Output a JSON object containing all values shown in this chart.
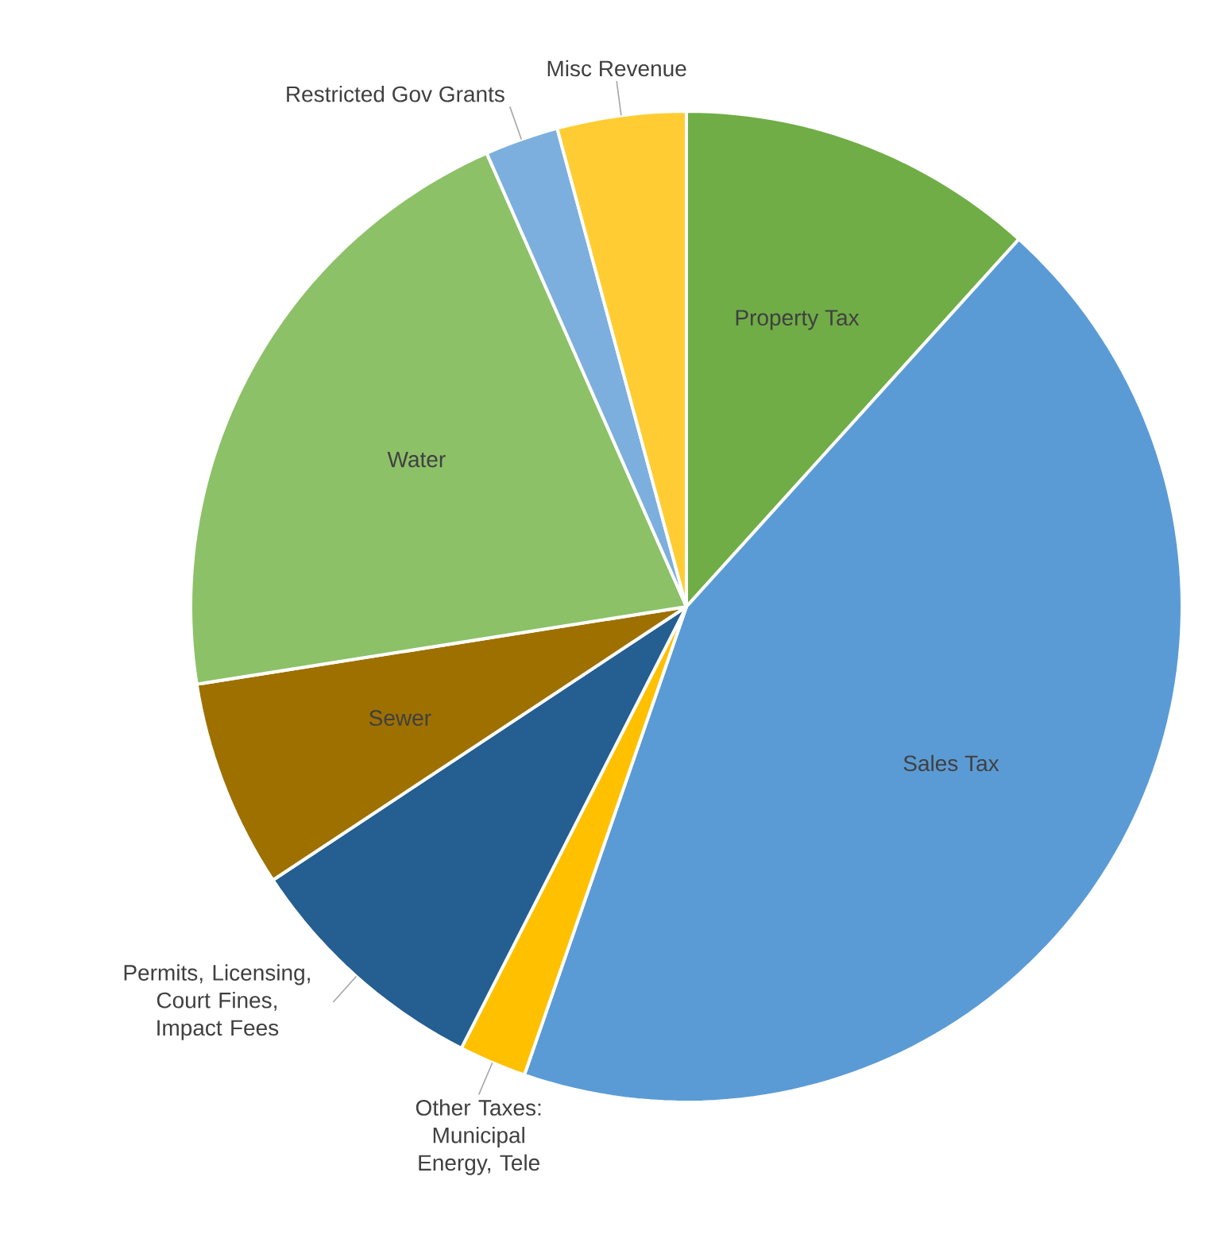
{
  "chart_data": {
    "type": "pie",
    "categories": [
      "Property Tax",
      "Sales Tax",
      "Other Taxes: Municipal Energy, Tele",
      "Permits, Licensing, Court Fines, Impact Fees",
      "Sewer",
      "Water",
      "Restricted Gov Grants",
      "Misc Revenue"
    ],
    "values": [
      11.7,
      43.6,
      2.2,
      8.2,
      6.8,
      20.9,
      2.4,
      4.2
    ],
    "colors": [
      "#70ad47",
      "#5b9bd5",
      "#ffc000",
      "#255e91",
      "#9e7000",
      "#8cc168",
      "#7cafdd",
      "#ffcd33"
    ]
  }
}
